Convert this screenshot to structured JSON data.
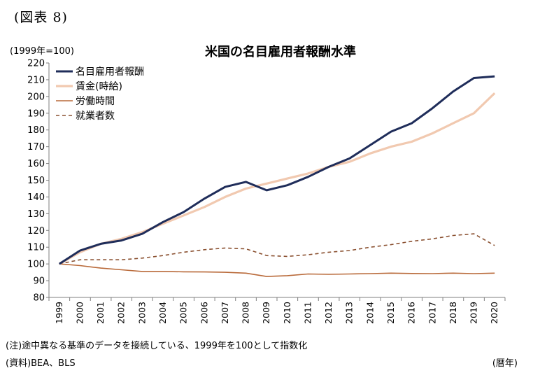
{
  "figure_label": "(図表 8)",
  "unit_label": "(1999年=100)",
  "footnote": "(注)途中異なる基準のデータを接続している、1999年を100として指数化",
  "source": "(資料)BEA、BLS",
  "x_unit": "(暦年)",
  "chart_data": {
    "type": "line",
    "title": "米国の名目雇用者報酬水準",
    "ylim": [
      80,
      220
    ],
    "y_ticks": [
      80,
      90,
      100,
      110,
      120,
      130,
      140,
      150,
      160,
      170,
      180,
      190,
      200,
      210,
      220
    ],
    "x": [
      "1999",
      "2000",
      "2001",
      "2002",
      "2003",
      "2004",
      "2005",
      "2006",
      "2007",
      "2008",
      "2009",
      "2010",
      "2011",
      "2012",
      "2013",
      "2014",
      "2015",
      "2016",
      "2017",
      "2018",
      "2019",
      "2020"
    ],
    "legend_position": "top-left",
    "grid": false,
    "series": [
      {
        "name": "名目雇用者報酬",
        "color": "#1f2d5a",
        "dash": "solid",
        "values": [
          100,
          108,
          112,
          114,
          118,
          125,
          131,
          139,
          146,
          149,
          144,
          147,
          152,
          158,
          163,
          171,
          179,
          184,
          193,
          203,
          211,
          212
        ]
      },
      {
        "name": "賃金(時給)",
        "color": "#f1c9b0",
        "dash": "solid",
        "values": [
          100,
          107,
          112,
          115,
          119,
          124,
          129,
          134,
          140,
          145,
          148,
          151,
          154,
          158,
          161,
          166,
          170,
          173,
          178,
          184,
          190,
          202
        ]
      },
      {
        "name": "労働時間",
        "color": "#b96a3a",
        "dash": "solid",
        "values": [
          100,
          99,
          97.5,
          96.5,
          95.5,
          95.5,
          95.3,
          95.2,
          95,
          94.5,
          92.5,
          93,
          94,
          93.8,
          94,
          94.2,
          94.5,
          94.3,
          94.2,
          94.5,
          94.2,
          94.5
        ]
      },
      {
        "name": "就業者数",
        "color": "#8a5030",
        "dash": "dashed",
        "values": [
          100,
          102.5,
          102.5,
          102.5,
          103.5,
          105,
          107,
          108.5,
          109.5,
          109,
          105,
          104.5,
          105.5,
          107,
          108,
          110,
          111.5,
          113.5,
          115,
          117,
          118,
          111
        ]
      }
    ]
  }
}
